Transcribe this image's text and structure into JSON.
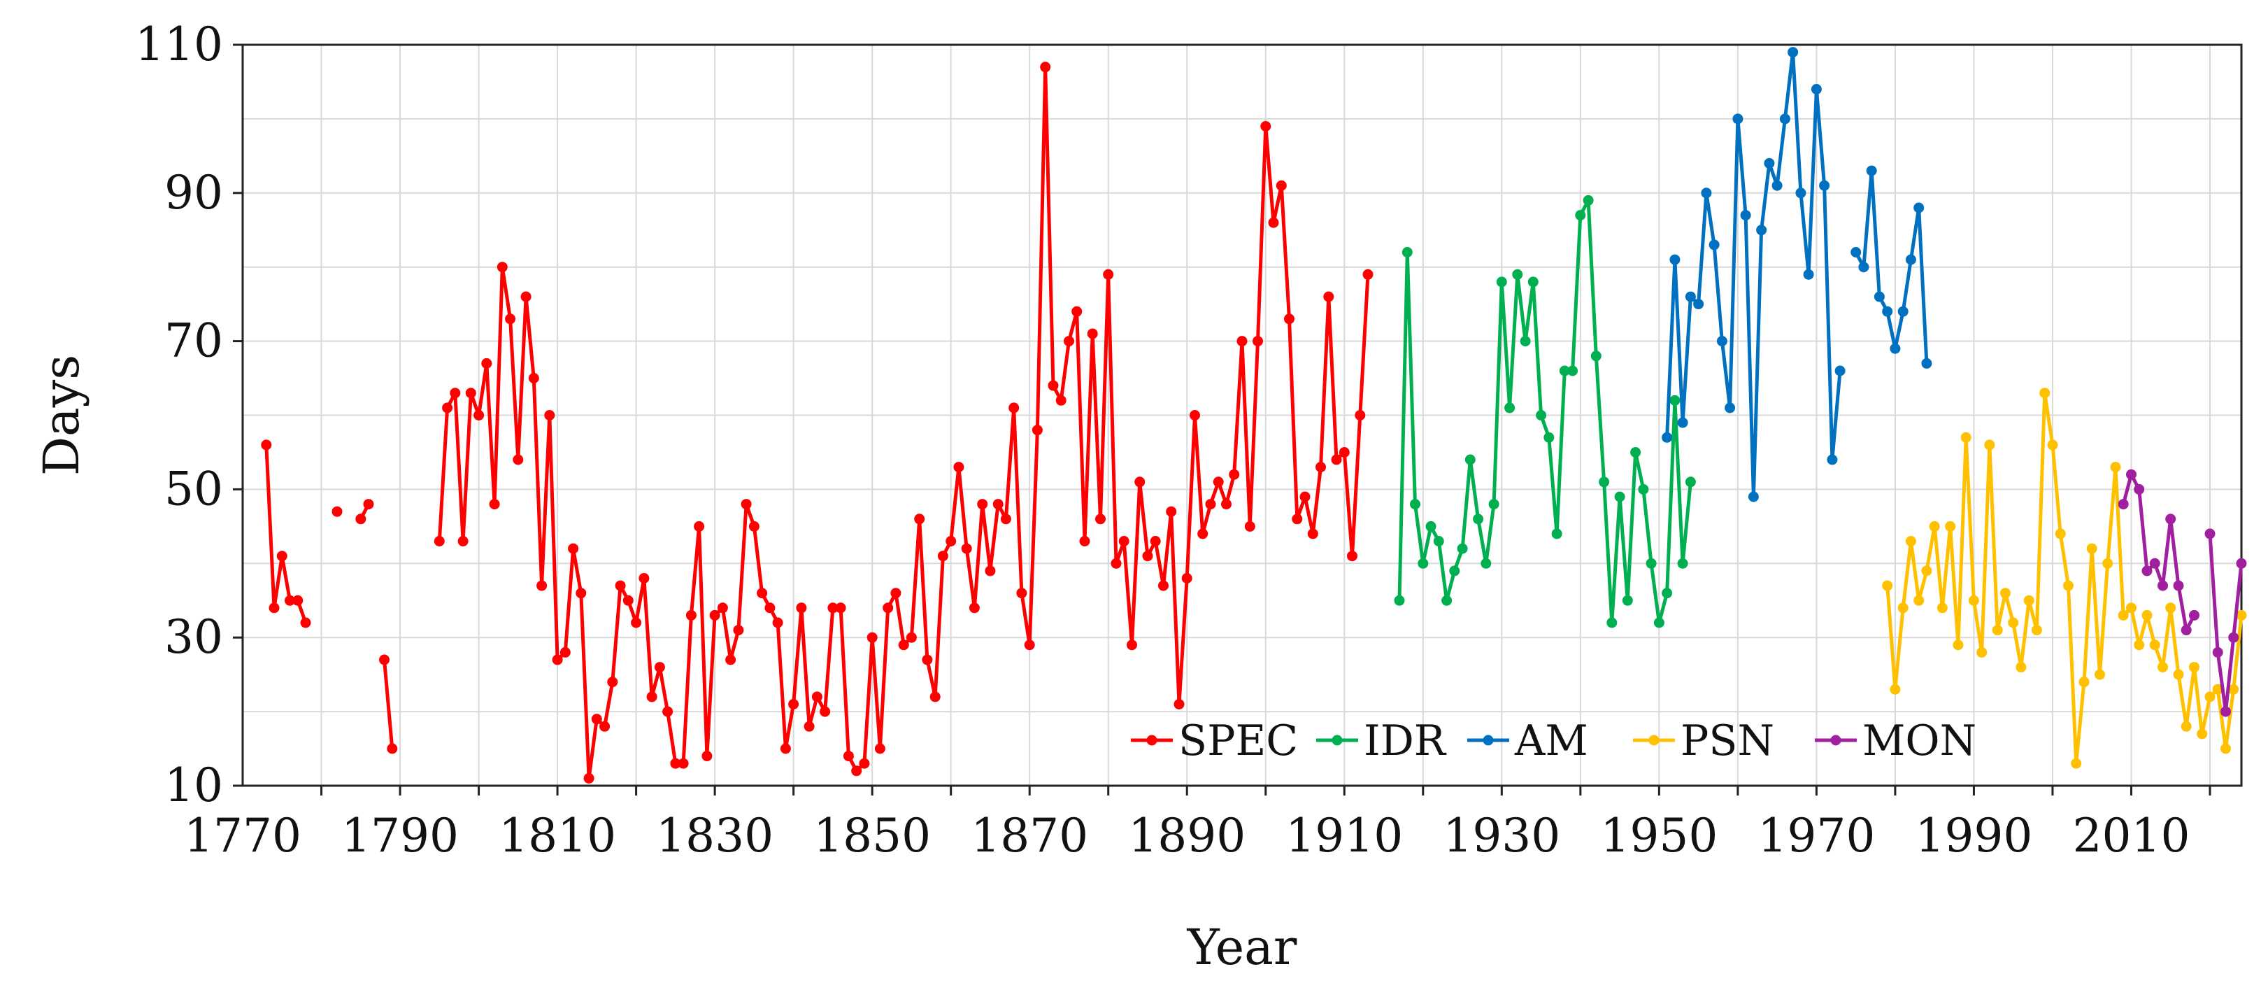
{
  "chart_data": {
    "type": "line",
    "title": "",
    "xlabel": "Year",
    "ylabel": "Days",
    "xlim": [
      1770,
      2024
    ],
    "ylim": [
      10,
      110
    ],
    "xticks": [
      1770,
      1790,
      1810,
      1830,
      1850,
      1870,
      1890,
      1910,
      1930,
      1950,
      1970,
      1990,
      2010
    ],
    "yticks": [
      10,
      30,
      50,
      70,
      90,
      110
    ],
    "grid": true,
    "legend_position": "bottom-center",
    "series": [
      {
        "name": "SPEC",
        "color": "#ff0000",
        "points": [
          [
            1773,
            56
          ],
          [
            1774,
            34
          ],
          [
            1775,
            41
          ],
          [
            1776,
            35
          ],
          [
            1777,
            35
          ],
          [
            1778,
            32
          ],
          null,
          [
            1782,
            47
          ],
          null,
          [
            1785,
            46
          ],
          [
            1786,
            48
          ],
          null,
          [
            1788,
            27
          ],
          [
            1789,
            15
          ],
          null,
          [
            1795,
            43
          ],
          [
            1796,
            61
          ],
          [
            1797,
            63
          ],
          [
            1798,
            43
          ],
          [
            1799,
            63
          ],
          [
            1800,
            60
          ],
          [
            1801,
            67
          ],
          [
            1802,
            48
          ],
          [
            1803,
            80
          ],
          [
            1804,
            73
          ],
          [
            1805,
            54
          ],
          [
            1806,
            76
          ],
          [
            1807,
            65
          ],
          [
            1808,
            37
          ],
          [
            1809,
            60
          ],
          [
            1810,
            27
          ],
          [
            1811,
            28
          ],
          [
            1812,
            42
          ],
          [
            1813,
            36
          ],
          [
            1814,
            11
          ],
          [
            1815,
            19
          ],
          [
            1816,
            18
          ],
          [
            1817,
            24
          ],
          [
            1818,
            37
          ],
          [
            1819,
            35
          ],
          [
            1820,
            32
          ],
          [
            1821,
            38
          ],
          [
            1822,
            22
          ],
          [
            1823,
            26
          ],
          [
            1824,
            20
          ],
          [
            1825,
            13
          ],
          [
            1826,
            13
          ],
          [
            1827,
            33
          ],
          [
            1828,
            45
          ],
          [
            1829,
            14
          ],
          [
            1830,
            33
          ],
          [
            1831,
            34
          ],
          [
            1832,
            27
          ],
          [
            1833,
            31
          ],
          [
            1834,
            48
          ],
          [
            1835,
            45
          ],
          [
            1836,
            36
          ],
          [
            1837,
            34
          ],
          [
            1838,
            32
          ],
          [
            1839,
            15
          ],
          [
            1840,
            21
          ],
          [
            1841,
            34
          ],
          [
            1842,
            18
          ],
          [
            1843,
            22
          ],
          [
            1844,
            20
          ],
          [
            1845,
            34
          ],
          [
            1846,
            34
          ],
          [
            1847,
            14
          ],
          [
            1848,
            12
          ],
          [
            1849,
            13
          ],
          [
            1850,
            30
          ],
          [
            1851,
            15
          ],
          [
            1852,
            34
          ],
          [
            1853,
            36
          ],
          [
            1854,
            29
          ],
          [
            1855,
            30
          ],
          [
            1856,
            46
          ],
          [
            1857,
            27
          ],
          [
            1858,
            22
          ],
          [
            1859,
            41
          ],
          [
            1860,
            43
          ],
          [
            1861,
            53
          ],
          [
            1862,
            42
          ],
          [
            1863,
            34
          ],
          [
            1864,
            48
          ],
          [
            1865,
            39
          ],
          [
            1866,
            48
          ],
          [
            1867,
            46
          ],
          [
            1868,
            61
          ],
          [
            1869,
            36
          ],
          [
            1870,
            29
          ],
          [
            1871,
            58
          ],
          [
            1872,
            107
          ],
          [
            1873,
            64
          ],
          [
            1874,
            62
          ],
          [
            1875,
            70
          ],
          [
            1876,
            74
          ],
          [
            1877,
            43
          ],
          [
            1878,
            71
          ],
          [
            1879,
            46
          ],
          [
            1880,
            79
          ],
          [
            1881,
            40
          ],
          [
            1882,
            43
          ],
          [
            1883,
            29
          ],
          [
            1884,
            51
          ],
          [
            1885,
            41
          ],
          [
            1886,
            43
          ],
          [
            1887,
            37
          ],
          [
            1888,
            47
          ],
          [
            1889,
            21
          ],
          [
            1890,
            38
          ],
          [
            1891,
            60
          ],
          [
            1892,
            44
          ],
          [
            1893,
            48
          ],
          [
            1894,
            51
          ],
          [
            1895,
            48
          ],
          [
            1896,
            52
          ],
          [
            1897,
            70
          ],
          [
            1898,
            45
          ],
          [
            1899,
            70
          ],
          [
            1900,
            99
          ],
          [
            1901,
            86
          ],
          [
            1902,
            91
          ],
          [
            1903,
            73
          ],
          [
            1904,
            46
          ],
          [
            1905,
            49
          ],
          [
            1906,
            44
          ],
          [
            1907,
            53
          ],
          [
            1908,
            76
          ],
          [
            1909,
            54
          ],
          [
            1910,
            55
          ],
          [
            1911,
            41
          ],
          [
            1912,
            60
          ],
          [
            1913,
            79
          ]
        ]
      },
      {
        "name": "IDR",
        "color": "#00b050",
        "points": [
          [
            1917,
            35
          ],
          [
            1918,
            82
          ],
          [
            1919,
            48
          ],
          [
            1920,
            40
          ],
          [
            1921,
            45
          ],
          [
            1922,
            43
          ],
          [
            1923,
            35
          ],
          [
            1924,
            39
          ],
          [
            1925,
            42
          ],
          [
            1926,
            54
          ],
          [
            1927,
            46
          ],
          [
            1928,
            40
          ],
          [
            1929,
            48
          ],
          [
            1930,
            78
          ],
          [
            1931,
            61
          ],
          [
            1932,
            79
          ],
          [
            1933,
            70
          ],
          [
            1934,
            78
          ],
          [
            1935,
            60
          ],
          [
            1936,
            57
          ],
          [
            1937,
            44
          ],
          [
            1938,
            66
          ],
          [
            1939,
            66
          ],
          [
            1940,
            87
          ],
          [
            1941,
            89
          ],
          [
            1942,
            68
          ],
          [
            1943,
            51
          ],
          [
            1944,
            32
          ],
          [
            1945,
            49
          ],
          [
            1946,
            35
          ],
          [
            1947,
            55
          ],
          [
            1948,
            50
          ],
          [
            1949,
            40
          ],
          [
            1950,
            32
          ],
          [
            1951,
            36
          ],
          [
            1952,
            62
          ],
          [
            1953,
            40
          ],
          [
            1954,
            51
          ]
        ]
      },
      {
        "name": "AM",
        "color": "#0070c0",
        "points": [
          [
            1951,
            57
          ],
          [
            1952,
            81
          ],
          [
            1953,
            59
          ],
          [
            1954,
            76
          ],
          [
            1955,
            75
          ],
          [
            1956,
            90
          ],
          [
            1957,
            83
          ],
          [
            1958,
            70
          ],
          [
            1959,
            61
          ],
          [
            1960,
            100
          ],
          [
            1961,
            87
          ],
          [
            1962,
            49
          ],
          [
            1963,
            85
          ],
          [
            1964,
            94
          ],
          [
            1965,
            91
          ],
          [
            1966,
            100
          ],
          [
            1967,
            109
          ],
          [
            1968,
            90
          ],
          [
            1969,
            79
          ],
          [
            1970,
            104
          ],
          [
            1971,
            91
          ],
          [
            1972,
            54
          ],
          [
            1973,
            66
          ],
          null,
          [
            1975,
            82
          ],
          [
            1976,
            80
          ],
          [
            1977,
            93
          ],
          [
            1978,
            76
          ],
          [
            1979,
            74
          ],
          [
            1980,
            69
          ],
          [
            1981,
            74
          ],
          [
            1982,
            81
          ],
          [
            1983,
            88
          ],
          [
            1984,
            67
          ]
        ]
      },
      {
        "name": "PSN",
        "color": "#ffc000",
        "points": [
          [
            1979,
            37
          ],
          [
            1980,
            23
          ],
          [
            1981,
            34
          ],
          [
            1982,
            43
          ],
          [
            1983,
            35
          ],
          [
            1984,
            39
          ],
          [
            1985,
            45
          ],
          [
            1986,
            34
          ],
          [
            1987,
            45
          ],
          [
            1988,
            29
          ],
          [
            1989,
            57
          ],
          [
            1990,
            35
          ],
          [
            1991,
            28
          ],
          [
            1992,
            56
          ],
          [
            1993,
            31
          ],
          [
            1994,
            36
          ],
          [
            1995,
            32
          ],
          [
            1996,
            26
          ],
          [
            1997,
            35
          ],
          [
            1998,
            31
          ],
          [
            1999,
            63
          ],
          [
            2000,
            56
          ],
          [
            2001,
            44
          ],
          [
            2002,
            37
          ],
          [
            2003,
            13
          ],
          [
            2004,
            24
          ],
          [
            2005,
            42
          ],
          [
            2006,
            25
          ],
          [
            2007,
            40
          ],
          [
            2008,
            53
          ],
          [
            2009,
            33
          ],
          [
            2010,
            34
          ],
          [
            2011,
            29
          ],
          [
            2012,
            33
          ],
          [
            2013,
            29
          ],
          [
            2014,
            26
          ],
          [
            2015,
            34
          ],
          [
            2016,
            25
          ],
          [
            2017,
            18
          ],
          [
            2018,
            26
          ],
          [
            2019,
            17
          ],
          [
            2020,
            22
          ],
          [
            2021,
            23
          ],
          [
            2022,
            15
          ],
          [
            2023,
            23
          ],
          [
            2024,
            33
          ]
        ]
      },
      {
        "name": "MON",
        "color": "#a020a0",
        "points": [
          [
            2009,
            48
          ],
          [
            2010,
            52
          ],
          [
            2011,
            50
          ],
          [
            2012,
            39
          ],
          [
            2013,
            40
          ],
          [
            2014,
            37
          ],
          [
            2015,
            46
          ],
          [
            2016,
            37
          ],
          [
            2017,
            31
          ],
          [
            2018,
            33
          ],
          null,
          [
            2020,
            44
          ],
          [
            2021,
            28
          ],
          [
            2022,
            20
          ],
          [
            2023,
            30
          ],
          [
            2024,
            40
          ]
        ]
      }
    ]
  }
}
